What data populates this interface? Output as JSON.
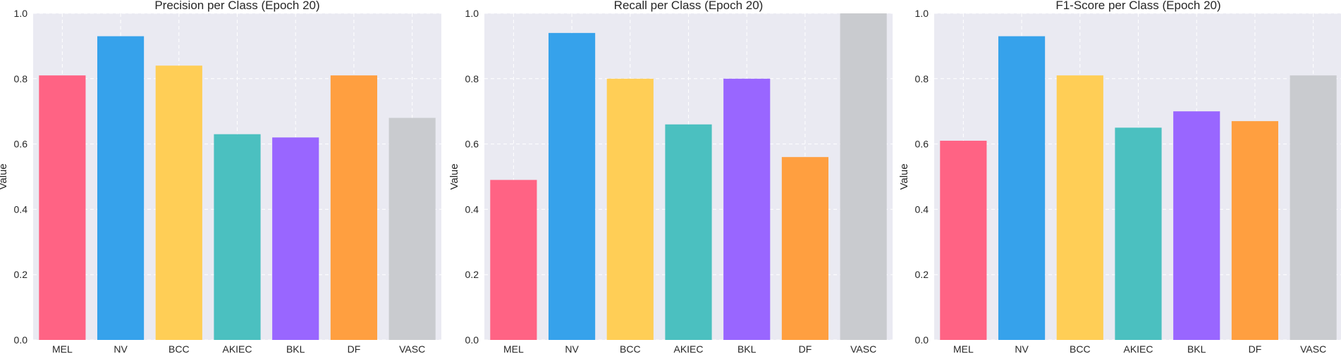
{
  "chart_data": [
    {
      "type": "bar",
      "title": "Precision per Class (Epoch 20)",
      "xlabel": "",
      "ylabel": "Value",
      "ylim": [
        0,
        1.0
      ],
      "yticks": [
        "0.0",
        "0.2",
        "0.4",
        "0.6",
        "0.8",
        "1.0"
      ],
      "grid": true,
      "categories": [
        "MEL",
        "NV",
        "BCC",
        "AKIEC",
        "BKL",
        "DF",
        "VASC"
      ],
      "values": [
        0.81,
        0.93,
        0.84,
        0.63,
        0.62,
        0.81,
        0.68
      ],
      "colors": [
        "#ff6384",
        "#36a2eb",
        "#ffce56",
        "#4bc0c0",
        "#9966ff",
        "#ff9f40",
        "#c9cbcf"
      ]
    },
    {
      "type": "bar",
      "title": "Recall per Class (Epoch 20)",
      "xlabel": "",
      "ylabel": "Value",
      "ylim": [
        0,
        1.0
      ],
      "yticks": [
        "0.0",
        "0.2",
        "0.4",
        "0.6",
        "0.8",
        "1.0"
      ],
      "grid": true,
      "categories": [
        "MEL",
        "NV",
        "BCC",
        "AKIEC",
        "BKL",
        "DF",
        "VASC"
      ],
      "values": [
        0.49,
        0.94,
        0.8,
        0.66,
        0.8,
        0.56,
        1.0
      ],
      "colors": [
        "#ff6384",
        "#36a2eb",
        "#ffce56",
        "#4bc0c0",
        "#9966ff",
        "#ff9f40",
        "#c9cbcf"
      ]
    },
    {
      "type": "bar",
      "title": "F1-Score per Class (Epoch 20)",
      "xlabel": "",
      "ylabel": "Value",
      "ylim": [
        0,
        1.0
      ],
      "yticks": [
        "0.0",
        "0.2",
        "0.4",
        "0.6",
        "0.8",
        "1.0"
      ],
      "grid": true,
      "categories": [
        "MEL",
        "NV",
        "BCC",
        "AKIEC",
        "BKL",
        "DF",
        "VASC"
      ],
      "values": [
        0.61,
        0.93,
        0.81,
        0.65,
        0.7,
        0.67,
        0.81
      ],
      "colors": [
        "#ff6384",
        "#36a2eb",
        "#ffce56",
        "#4bc0c0",
        "#9966ff",
        "#ff9f40",
        "#c9cbcf"
      ]
    }
  ]
}
